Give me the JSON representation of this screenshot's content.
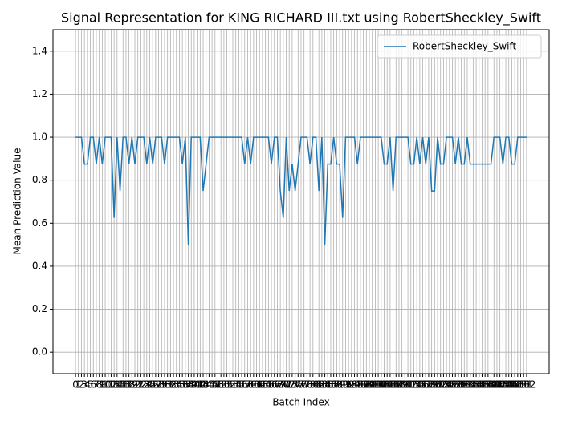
{
  "chart_data": {
    "type": "line",
    "title": "Signal Representation for KING RICHARD III.txt using RobertSheckley_Swift",
    "x_label": "Batch Index",
    "y_label": "Mean Prediction Value",
    "x": [
      0,
      1,
      2,
      3,
      4,
      5,
      6,
      7,
      8,
      9,
      10,
      11,
      12,
      13,
      14,
      15,
      16,
      17,
      18,
      19,
      20,
      21,
      22,
      23,
      24,
      25,
      26,
      27,
      28,
      29,
      30,
      31,
      32,
      33,
      34,
      35,
      36,
      37,
      38,
      39,
      40,
      41,
      42,
      43,
      44,
      45,
      46,
      47,
      48,
      49,
      50,
      51,
      52,
      53,
      54,
      55,
      56,
      57,
      58,
      59,
      60,
      61,
      62,
      63,
      64,
      65,
      66,
      67,
      68,
      69,
      70,
      71,
      72,
      73,
      74,
      75,
      76,
      77,
      78,
      79,
      80,
      81,
      82,
      83,
      84,
      85,
      86,
      87,
      88,
      89,
      90,
      91,
      92,
      93,
      94,
      95,
      96,
      97,
      98,
      99,
      100,
      101,
      102,
      103,
      104,
      105,
      106,
      107,
      108,
      109,
      110,
      111,
      112,
      113,
      114,
      115,
      116,
      117,
      118,
      119,
      120,
      121,
      122,
      123,
      124,
      125,
      126,
      127,
      128,
      129,
      130,
      131,
      132,
      133,
      134,
      135,
      136,
      137,
      138,
      139,
      140,
      141,
      142,
      143,
      144,
      145,
      146,
      147,
      148,
      149,
      150,
      151,
      152
    ],
    "series": [
      {
        "name": "RobertSheckley_Swift",
        "color": "#1f77b4",
        "values": [
          1,
          1,
          1,
          0.875,
          0.875,
          1,
          1,
          0.875,
          1,
          0.875,
          1,
          1,
          1,
          0.625,
          1,
          0.75,
          1,
          1,
          0.875,
          1,
          0.875,
          1,
          1,
          1,
          0.875,
          1,
          0.875,
          1,
          1,
          1,
          0.875,
          1,
          1,
          1,
          1,
          1,
          0.875,
          1,
          0.5,
          1,
          1,
          1,
          1,
          0.75,
          0.875,
          1,
          1,
          1,
          1,
          1,
          1,
          1,
          1,
          1,
          1,
          1,
          1,
          0.875,
          1,
          0.875,
          1,
          1,
          1,
          1,
          1,
          1,
          0.875,
          1,
          1,
          0.75,
          0.625,
          1,
          0.75,
          0.875,
          0.75,
          0.875,
          1,
          1,
          1,
          0.875,
          1,
          1,
          0.75,
          1,
          0.5,
          0.875,
          0.875,
          1,
          0.875,
          0.875,
          0.625,
          1,
          1,
          1,
          1,
          0.875,
          1,
          1,
          1,
          1,
          1,
          1,
          1,
          1,
          0.875,
          0.875,
          1,
          0.75,
          1,
          1,
          1,
          1,
          1,
          0.875,
          0.875,
          1,
          0.875,
          1,
          0.875,
          1,
          0.75,
          0.75,
          1,
          0.875,
          0.875,
          1,
          1,
          1,
          0.875,
          1,
          0.875,
          0.875,
          1,
          0.875,
          0.875,
          0.875,
          0.875,
          0.875,
          0.875,
          0.875,
          0.875,
          1,
          1,
          1,
          0.875,
          1,
          1,
          0.875,
          0.875,
          1,
          1,
          1,
          1
        ]
      }
    ],
    "xlim": [
      -7.6,
      159.6
    ],
    "ylim": [
      -0.1,
      1.5
    ],
    "xticks": [
      0,
      1,
      2,
      3,
      4,
      5,
      6,
      7,
      8,
      9,
      10,
      11,
      12,
      13,
      14,
      15,
      16,
      17,
      18,
      19,
      20,
      21,
      22,
      23,
      24,
      25,
      26,
      27,
      28,
      29,
      30,
      31,
      32,
      33,
      34,
      35,
      36,
      37,
      38,
      39,
      40,
      41,
      42,
      43,
      44,
      45,
      46,
      47,
      48,
      49,
      50,
      51,
      52,
      53,
      54,
      55,
      56,
      57,
      58,
      59,
      60,
      61,
      62,
      63,
      64,
      65,
      66,
      67,
      68,
      69,
      70,
      71,
      72,
      73,
      74,
      75,
      76,
      77,
      78,
      79,
      80,
      81,
      82,
      83,
      84,
      85,
      86,
      87,
      88,
      89,
      90,
      91,
      92,
      93,
      94,
      95,
      96,
      97,
      98,
      99,
      100,
      101,
      102,
      103,
      104,
      105,
      106,
      107,
      108,
      109,
      110,
      111,
      112,
      113,
      114,
      115,
      116,
      117,
      118,
      119,
      120,
      121,
      122,
      123,
      124,
      125,
      126,
      127,
      128,
      129,
      130,
      131,
      132,
      133,
      134,
      135,
      136,
      137,
      138,
      139,
      140,
      141,
      142,
      143,
      144,
      145,
      146,
      147,
      148,
      149,
      150,
      151,
      152
    ],
    "yticks": [
      {
        "value": 0,
        "label": "0.0"
      },
      {
        "value": 0.2,
        "label": "0.2"
      },
      {
        "value": 0.4,
        "label": "0.4"
      },
      {
        "value": 0.6,
        "label": "0.6"
      },
      {
        "value": 0.8,
        "label": "0.8"
      },
      {
        "value": 1,
        "label": "1.0"
      },
      {
        "value": 1.2,
        "label": "1.2"
      },
      {
        "value": 1.4,
        "label": "1.4"
      }
    ],
    "grid": true,
    "legend": "upper right"
  }
}
